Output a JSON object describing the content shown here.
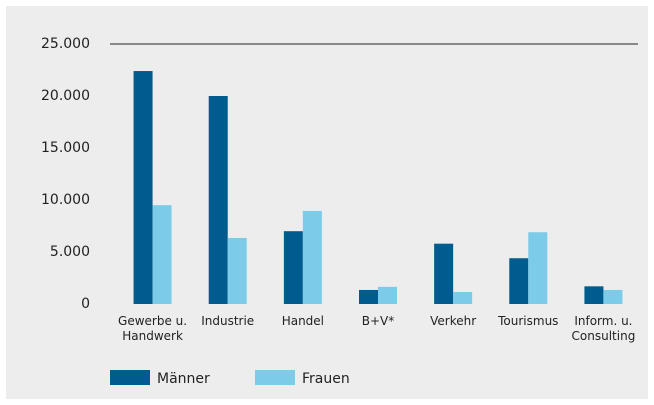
{
  "chart_data": {
    "type": "bar",
    "categories": [
      "Gewerbe u.\nHandwerk",
      "Industrie",
      "Handel",
      "B+V*",
      "Verkehr",
      "Tourismus",
      "Inform. u.\nConsulting"
    ],
    "series": [
      {
        "name": "Männer",
        "color": "#005b8e",
        "values": [
          22400,
          20000,
          7000,
          1350,
          5800,
          4400,
          1700
        ]
      },
      {
        "name": "Frauen",
        "color": "#7ccbe8",
        "values": [
          9500,
          6350,
          8950,
          1650,
          1150,
          6900,
          1350
        ]
      }
    ],
    "ylim": [
      0,
      25000
    ],
    "yticks": [
      0,
      {
        "value": 5000,
        "label": "5.000"
      },
      {
        "value": 10000,
        "label": "10.000"
      },
      {
        "value": 15000,
        "label": "15.000"
      },
      {
        "value": 20000,
        "label": "20.000"
      },
      {
        "value": 25000,
        "label": "25.000"
      }
    ],
    "grid": false
  }
}
